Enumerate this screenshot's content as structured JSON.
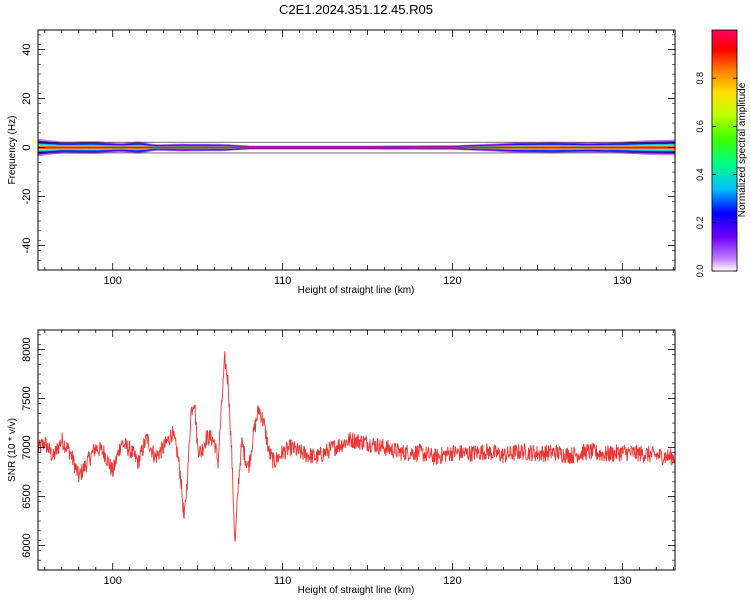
{
  "title": "C2E1.2024.351.12.45.R05",
  "colorbar": {
    "label": "Normalized spectral amplitude",
    "ticks": [
      "0.0",
      "0.2",
      "0.4",
      "0.6",
      "0.8"
    ],
    "tick_values": [
      0.0,
      0.2,
      0.4,
      0.6,
      0.8
    ],
    "range": [
      0,
      1
    ],
    "colormap": [
      "#ffffff",
      "#c080ff",
      "#7000ff",
      "#0000ff",
      "#00c0ff",
      "#00ff80",
      "#40ff00",
      "#c0ff00",
      "#ffe000",
      "#ff8000",
      "#ff0000",
      "#ff0060"
    ]
  },
  "chart_data": [
    {
      "type": "heatmap",
      "xlabel": "Height of straight line (km)",
      "ylabel": "Frequency (Hz)",
      "xlim": [
        95.6,
        133.1
      ],
      "ylim": [
        -50,
        48
      ],
      "xticks": [
        100,
        110,
        120,
        130
      ],
      "xtick_labels": [
        "100",
        "110",
        "120",
        "130"
      ],
      "yticks": [
        -40,
        -20,
        0,
        20,
        40
      ],
      "ytick_labels": [
        "-40",
        "-20",
        "0",
        "20",
        "40"
      ],
      "band_center_hz": 0,
      "band_halfwidth_hz": [
        [
          95.6,
          3.6
        ],
        [
          97,
          2.4
        ],
        [
          99,
          2.6
        ],
        [
          100.5,
          1.8
        ],
        [
          101.5,
          2.6
        ],
        [
          102.5,
          1.3
        ],
        [
          104,
          1.6
        ],
        [
          106.5,
          1.5
        ],
        [
          108,
          0.8
        ],
        [
          115,
          0.8
        ],
        [
          120,
          0.9
        ],
        [
          122,
          1.5
        ],
        [
          124,
          2.2
        ],
        [
          126,
          2.4
        ],
        [
          128,
          2.0
        ],
        [
          130,
          2.4
        ],
        [
          131.5,
          3.0
        ],
        [
          133.1,
          3.2
        ]
      ],
      "peak_amplitude": 1.0,
      "colorscale": "Normalized spectral amplitude"
    },
    {
      "type": "line",
      "xlabel": "Height of straight line (km)",
      "ylabel": "SNR (10 * v/v)",
      "xlim": [
        95.6,
        133.1
      ],
      "ylim": [
        5750,
        8200
      ],
      "xticks": [
        100,
        110,
        120,
        130
      ],
      "xtick_labels": [
        "100",
        "110",
        "120",
        "130"
      ],
      "yticks": [
        6000,
        6500,
        7000,
        7500,
        8000
      ],
      "ytick_labels": [
        "6000",
        "6500",
        "7000",
        "7500",
        "8000"
      ],
      "series": [
        {
          "color": "#ee3333",
          "x": [
            95.6,
            96.0,
            96.5,
            97.0,
            97.5,
            98.0,
            98.5,
            99.0,
            99.5,
            100.0,
            100.5,
            101.0,
            101.5,
            102.0,
            102.5,
            103.0,
            103.5,
            103.8,
            104.0,
            104.2,
            104.4,
            104.6,
            104.8,
            105.0,
            105.2,
            105.5,
            105.8,
            106.0,
            106.2,
            106.4,
            106.6,
            106.8,
            107.0,
            107.2,
            107.4,
            107.6,
            107.8,
            108.0,
            108.3,
            108.6,
            108.9,
            109.2,
            109.5,
            110.0,
            110.5,
            111.0,
            112.0,
            113.0,
            114.0,
            115.0,
            116.0,
            117.0,
            118.0,
            119.0,
            120.0,
            121.0,
            122.0,
            123.0,
            124.0,
            125.0,
            126.0,
            127.0,
            128.0,
            129.0,
            130.0,
            131.0,
            132.0,
            133.1
          ],
          "y": [
            6980,
            7050,
            6900,
            7080,
            6950,
            6700,
            6850,
            7000,
            6950,
            6750,
            7050,
            6980,
            6850,
            7100,
            6900,
            7000,
            7150,
            6950,
            6700,
            6250,
            6700,
            7350,
            7500,
            7000,
            6950,
            7100,
            7100,
            7050,
            6850,
            7400,
            7900,
            7650,
            6950,
            6000,
            6650,
            7050,
            6900,
            6800,
            7150,
            7400,
            7250,
            6950,
            6850,
            6950,
            7000,
            6950,
            6900,
            7000,
            7080,
            7050,
            7000,
            6950,
            6950,
            6900,
            6950,
            6940,
            6960,
            6920,
            6960,
            6940,
            6950,
            6920,
            6960,
            6930,
            6950,
            6940,
            6920,
            6900
          ],
          "noise_amplitude": 90
        }
      ]
    }
  ]
}
